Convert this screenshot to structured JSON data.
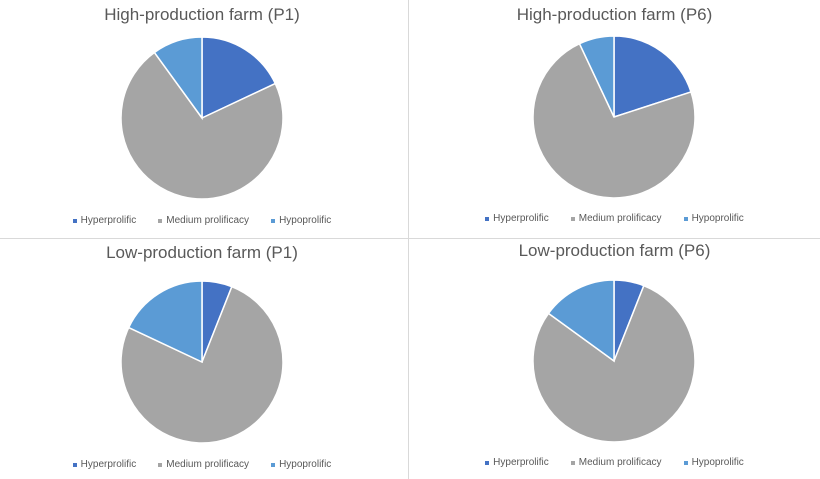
{
  "colors": {
    "Hyperprolific": "#4472c4",
    "Medium prolificacy": "#a5a5a5",
    "Hypoprolific": "#5b9bd5"
  },
  "chart_data": [
    {
      "type": "pie",
      "title": "High-production farm (P1)",
      "categories": [
        "Hyperprolific",
        "Medium prolificacy",
        "Hypoprolific"
      ],
      "values": [
        18,
        72,
        10
      ],
      "unit": "%",
      "legend": "bottom"
    },
    {
      "type": "pie",
      "title": "High-production farm (P6)",
      "categories": [
        "Hyperprolific",
        "Medium prolificacy",
        "Hypoprolific"
      ],
      "values": [
        20,
        73,
        7
      ],
      "unit": "%",
      "legend": "bottom"
    },
    {
      "type": "pie",
      "title": "Low-production farm (P1)",
      "categories": [
        "Hyperprolific",
        "Medium prolificacy",
        "Hypoprolific"
      ],
      "values": [
        6,
        76,
        18
      ],
      "unit": "%",
      "legend": "bottom"
    },
    {
      "type": "pie",
      "title": "Low-production farm (P6)",
      "categories": [
        "Hyperprolific",
        "Medium prolificacy",
        "Hypoprolific"
      ],
      "values": [
        6,
        79,
        15
      ],
      "unit": "%",
      "legend": "bottom"
    }
  ]
}
